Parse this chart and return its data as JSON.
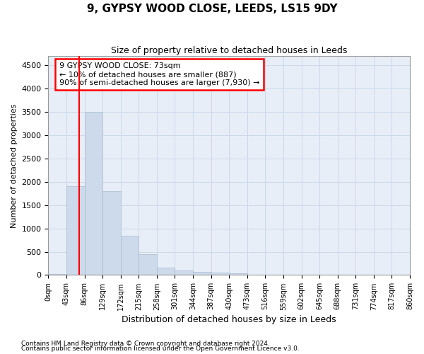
{
  "title": "9, GYPSY WOOD CLOSE, LEEDS, LS15 9DY",
  "subtitle": "Size of property relative to detached houses in Leeds",
  "xlabel": "Distribution of detached houses by size in Leeds",
  "ylabel": "Number of detached properties",
  "footnote1": "Contains HM Land Registry data © Crown copyright and database right 2024.",
  "footnote2": "Contains public sector information licensed under the Open Government Licence v3.0.",
  "annotation_line1": "9 GYPSY WOOD CLOSE: 73sqm",
  "annotation_line2": "← 10% of detached houses are smaller (887)",
  "annotation_line3": "90% of semi-detached houses are larger (7,930) →",
  "bar_values": [
    25,
    1900,
    3500,
    1800,
    850,
    450,
    160,
    100,
    70,
    55,
    40,
    5,
    3,
    2,
    1,
    1,
    0,
    0,
    0,
    0
  ],
  "bar_color": "#cddaeb",
  "bar_edgecolor": "#a8bcce",
  "x_labels": [
    "0sqm",
    "43sqm",
    "86sqm",
    "129sqm",
    "172sqm",
    "215sqm",
    "258sqm",
    "301sqm",
    "344sqm",
    "387sqm",
    "430sqm",
    "473sqm",
    "516sqm",
    "559sqm",
    "602sqm",
    "645sqm",
    "688sqm",
    "731sqm",
    "774sqm",
    "817sqm",
    "860sqm"
  ],
  "ylim": [
    0,
    4700
  ],
  "yticks": [
    0,
    500,
    1000,
    1500,
    2000,
    2500,
    3000,
    3500,
    4000,
    4500
  ],
  "red_line_x": 1.7,
  "grid_color": "#ccd8e8",
  "bg_color": "#e8eef8"
}
